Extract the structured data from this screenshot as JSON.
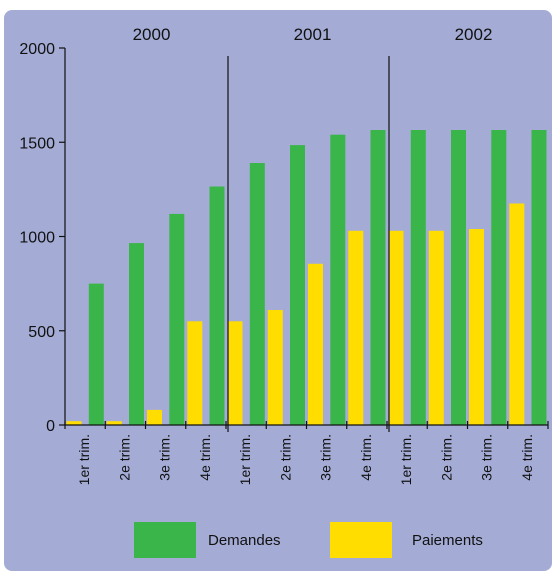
{
  "colors": {
    "background": "#a4acd6",
    "demandes": "#3ab54a",
    "paiements": "#ffdd00",
    "axis": "#111111"
  },
  "chart_data": {
    "type": "bar",
    "title": "",
    "xlabel": "",
    "ylabel": "",
    "ylim": [
      0,
      2000
    ],
    "yticks": [
      "0",
      "500",
      "1000",
      "1500",
      "2000"
    ],
    "legend_position": "bottom",
    "years": [
      "2000",
      "2001",
      "2002"
    ],
    "categories": [
      "1er trim.",
      "2e trim.",
      "3e trim.",
      "4e trim.",
      "1er trim.",
      "2e trim.",
      "3e trim.",
      "4e trim.",
      "1er trim.",
      "2e trim.",
      "3e trim.",
      "4e trim."
    ],
    "series": [
      {
        "name": "Demandes",
        "values": [
          750,
          965,
          1120,
          1265,
          1390,
          1485,
          1540,
          1565,
          1565,
          1565,
          1565,
          1565
        ]
      },
      {
        "name": "Paiements",
        "values": [
          20,
          20,
          80,
          550,
          550,
          610,
          855,
          1030,
          1030,
          1030,
          1040,
          1175
        ]
      }
    ]
  }
}
